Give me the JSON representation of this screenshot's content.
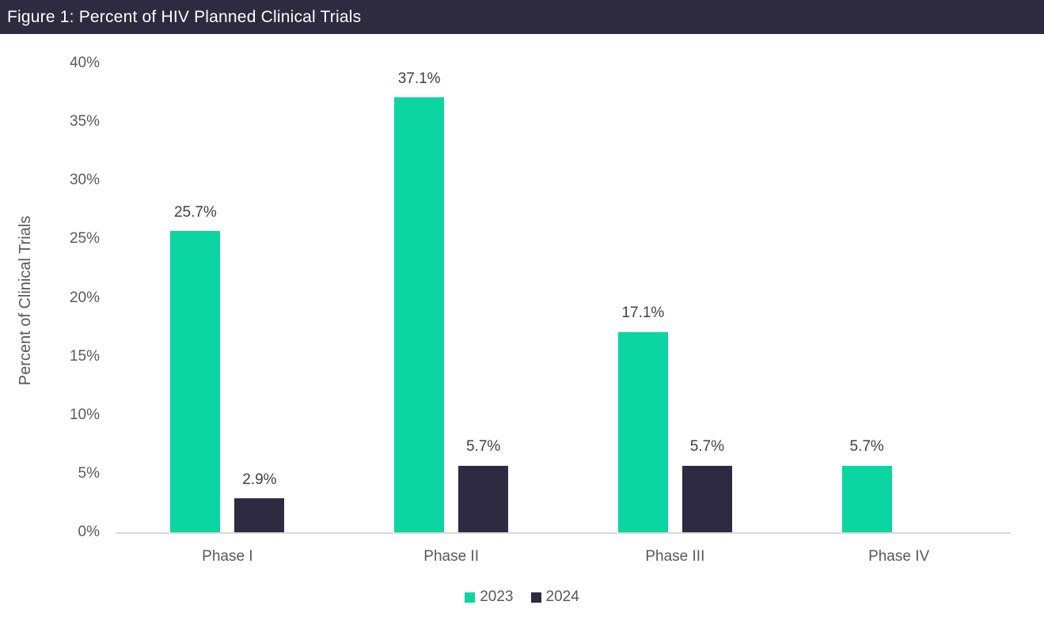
{
  "header": {
    "title": "Figure 1: Percent of HIV Planned Clinical Trials",
    "background_color": "#2e2a3f",
    "text_color": "#ffffff"
  },
  "chart_data": {
    "type": "bar",
    "title": "Figure 1: Percent of HIV Planned Clinical Trials",
    "categories": [
      "Phase I",
      "Phase II",
      "Phase III",
      "Phase IV"
    ],
    "series": [
      {
        "name": "2023",
        "color": "#0bd5a0",
        "values": [
          25.7,
          37.1,
          17.1,
          5.7
        ],
        "labels": [
          "25.7%",
          "37.1%",
          "17.1%",
          "5.7%"
        ]
      },
      {
        "name": "2024",
        "color": "#2d2a41",
        "values": [
          2.9,
          5.7,
          5.7,
          null
        ],
        "labels": [
          "2.9%",
          "5.7%",
          "5.7%",
          null
        ]
      }
    ],
    "xlabel": "",
    "ylabel": "Percent of Clinical Trials",
    "ylim": [
      0,
      40
    ],
    "yticks": [
      "0%",
      "5%",
      "10%",
      "15%",
      "20%",
      "25%",
      "30%",
      "35%",
      "40%"
    ],
    "grid": false,
    "legend_position": "bottom",
    "axis_line_color": "#d9d9d9",
    "tick_label_color": "#595959",
    "data_label_color": "#404040"
  }
}
